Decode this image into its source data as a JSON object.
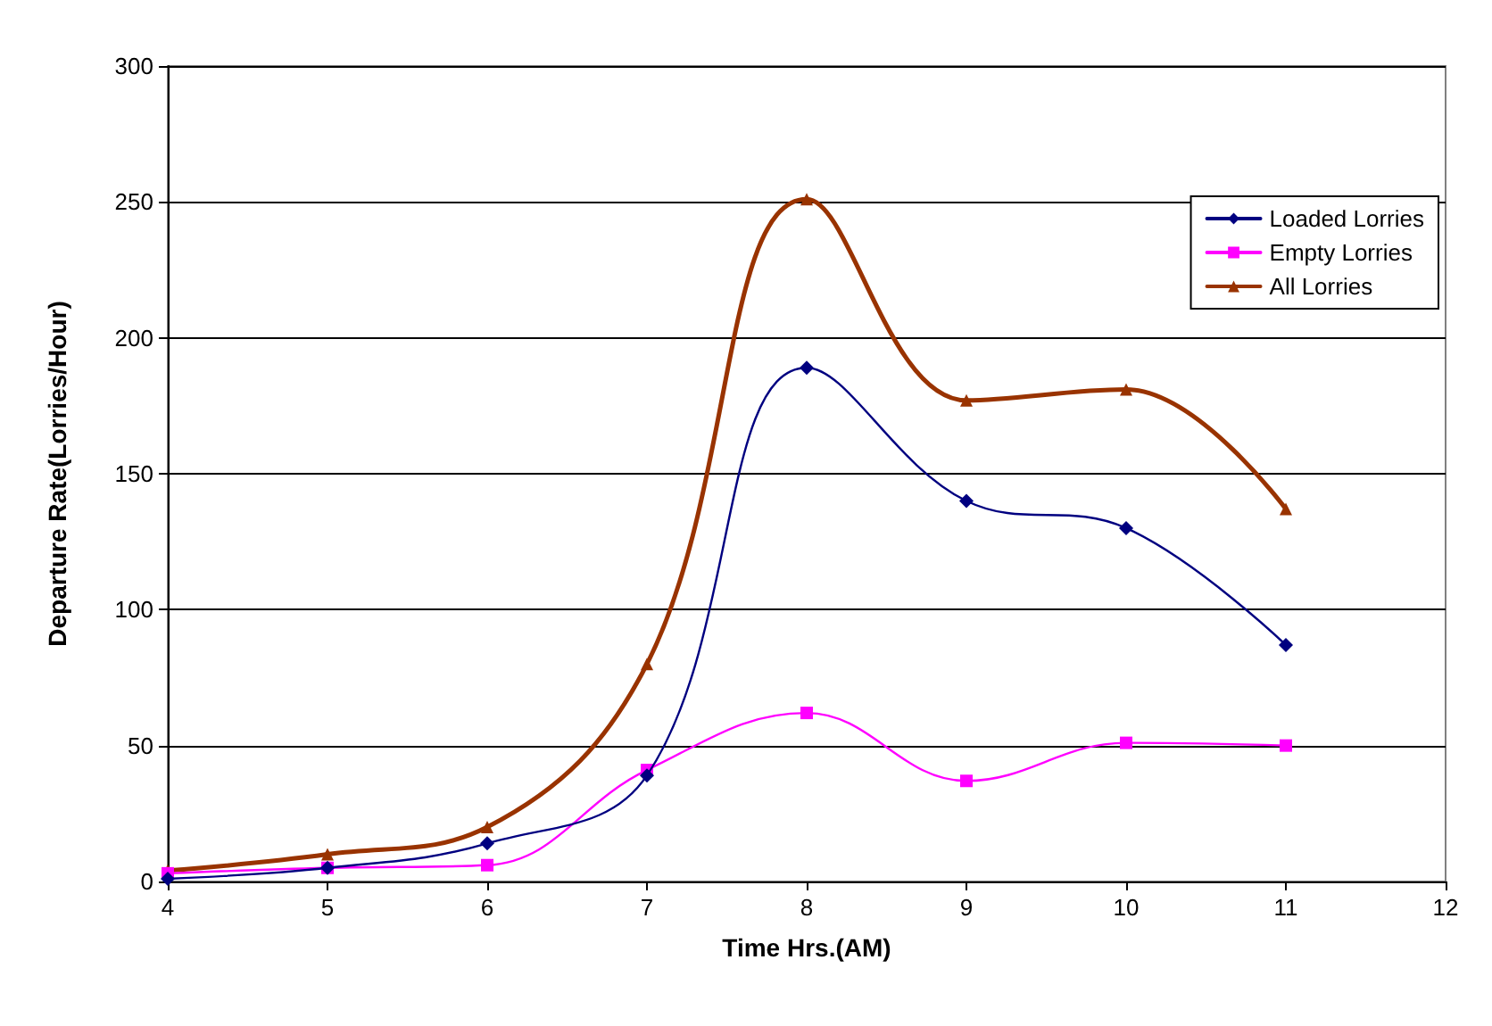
{
  "chart_data": {
    "type": "line",
    "xlabel": "Time Hrs.(AM)",
    "ylabel": "Departure Rate(Lorries/Hour)",
    "x": [
      4,
      5,
      6,
      7,
      8,
      9,
      10,
      11
    ],
    "xlim": [
      4,
      12
    ],
    "xticks": [
      4,
      5,
      6,
      7,
      8,
      9,
      10,
      11,
      12
    ],
    "ylim": [
      0,
      300
    ],
    "yticks": [
      0,
      50,
      100,
      150,
      200,
      250,
      300
    ],
    "grid": "y",
    "legend": "top right",
    "line_style": "solid",
    "series": [
      {
        "name": "Loaded Lorries",
        "color": "#000080",
        "marker": "diamond",
        "values": [
          1,
          5,
          14,
          39,
          189,
          140,
          130,
          87
        ]
      },
      {
        "name": "Empty Lorries",
        "color": "#ff00ff",
        "marker": "square",
        "values": [
          3,
          5,
          6,
          41,
          62,
          37,
          51,
          50
        ]
      },
      {
        "name": "All Lorries",
        "color": "#993300",
        "marker": "triangle",
        "values": [
          4,
          10,
          20,
          80,
          251,
          177,
          181,
          137
        ]
      }
    ]
  }
}
